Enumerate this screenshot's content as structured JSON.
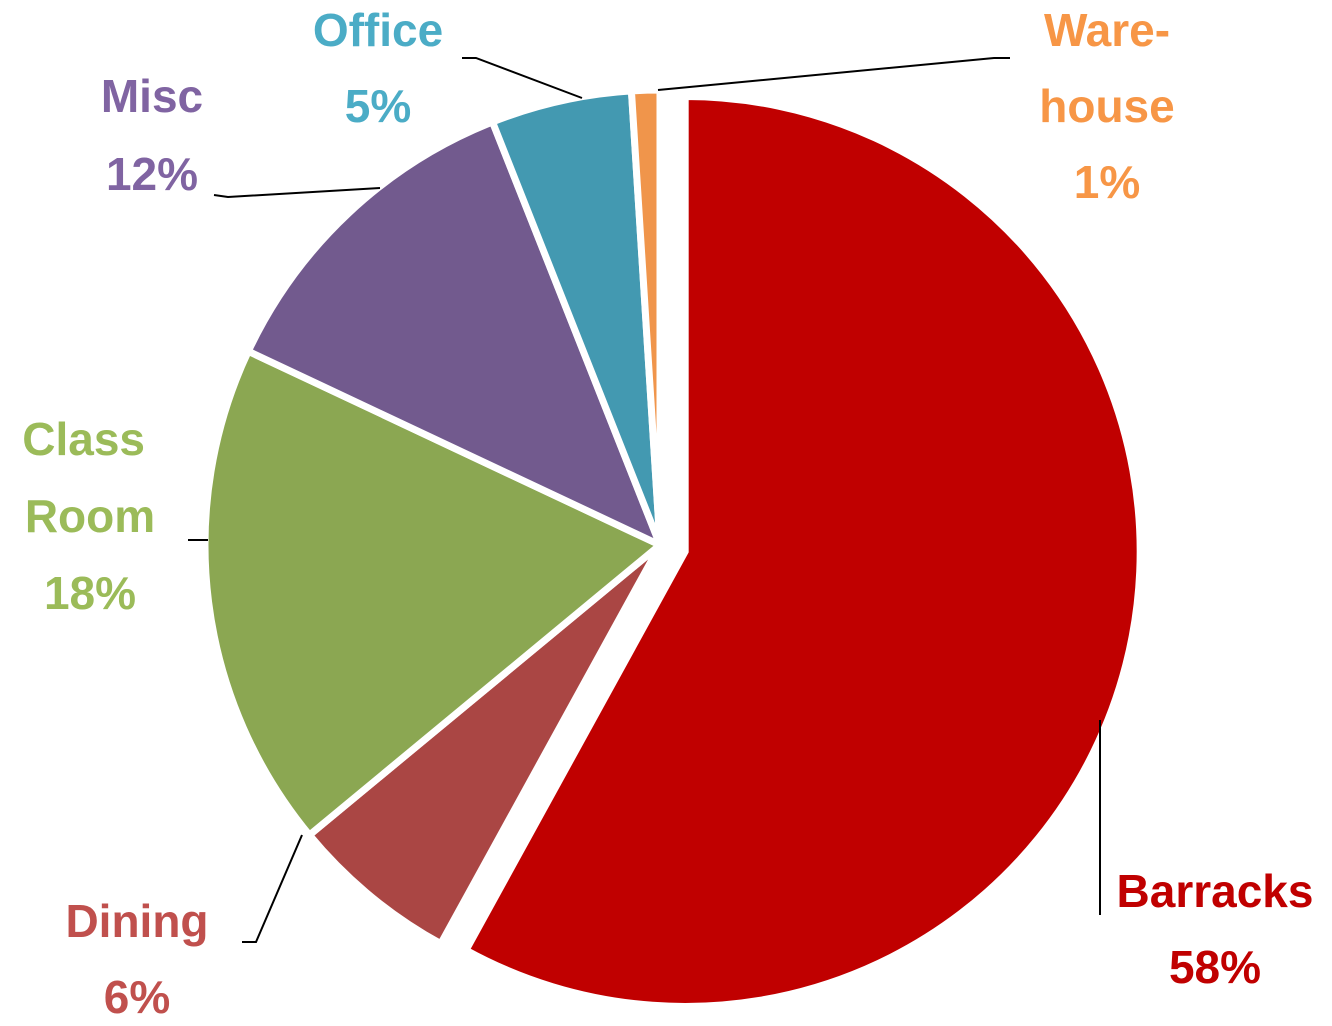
{
  "chart_data": {
    "type": "pie",
    "categories": [
      "Barracks",
      "Dining",
      "Class Room",
      "Misc",
      "Office",
      "Ware-house"
    ],
    "values": [
      58,
      6,
      18,
      12,
      5,
      1
    ],
    "value_labels": [
      "58%",
      "6%",
      "18%",
      "12%",
      "5%",
      "1%"
    ],
    "colors": [
      "#c00000",
      "#aa4644",
      "#8ba752",
      "#725a8e",
      "#4399b1",
      "#f0954b"
    ],
    "label_colors": [
      "#c00000",
      "#c0504d",
      "#9bbb59",
      "#8064a2",
      "#4bacc6",
      "#f79646"
    ]
  }
}
